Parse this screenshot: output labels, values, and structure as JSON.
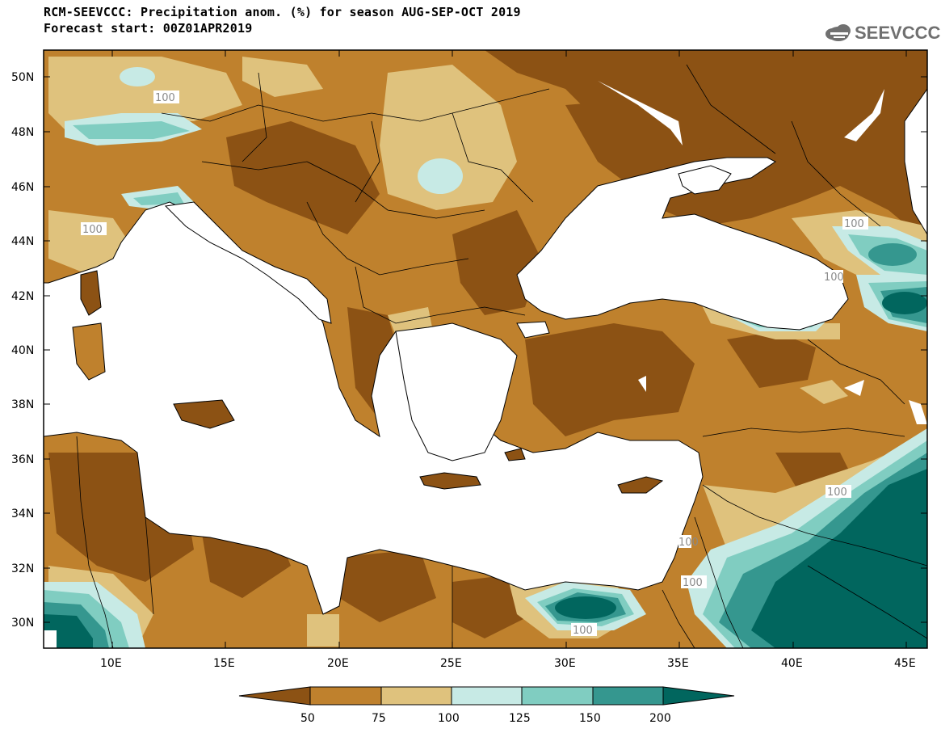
{
  "header": {
    "title_line1": "RCM-SEEVCCC: Precipitation anom. (%) for season AUG-SEP-OCT 2019",
    "title_line2": "Forecast start: 00Z01APR2019",
    "logo_text": "SEEVCCC"
  },
  "axes": {
    "lat_labels": [
      "50N",
      "48N",
      "46N",
      "44N",
      "42N",
      "40N",
      "38N",
      "36N",
      "34N",
      "32N",
      "30N"
    ],
    "lon_labels": [
      "10E",
      "15E",
      "20E",
      "25E",
      "30E",
      "35E",
      "40E",
      "45E"
    ]
  },
  "contour_labels": [
    "100",
    "100",
    "100",
    "100",
    "100",
    "100",
    "100",
    "100"
  ],
  "legend": {
    "labels": [
      "50",
      "75",
      "100",
      "125",
      "150",
      "200"
    ],
    "colors": [
      "#8c5214",
      "#bf812d",
      "#dfc27d",
      "#c7eae5",
      "#80cdc1",
      "#35978f",
      "#01665e"
    ]
  },
  "colors": {
    "land_base": "#bf812d",
    "very_dry": "#8c5214",
    "dry": "#dfc27d",
    "wet1": "#c7eae5",
    "wet2": "#80cdc1",
    "wet3": "#35978f",
    "wet4": "#01665e",
    "sea": "#ffffff"
  }
}
